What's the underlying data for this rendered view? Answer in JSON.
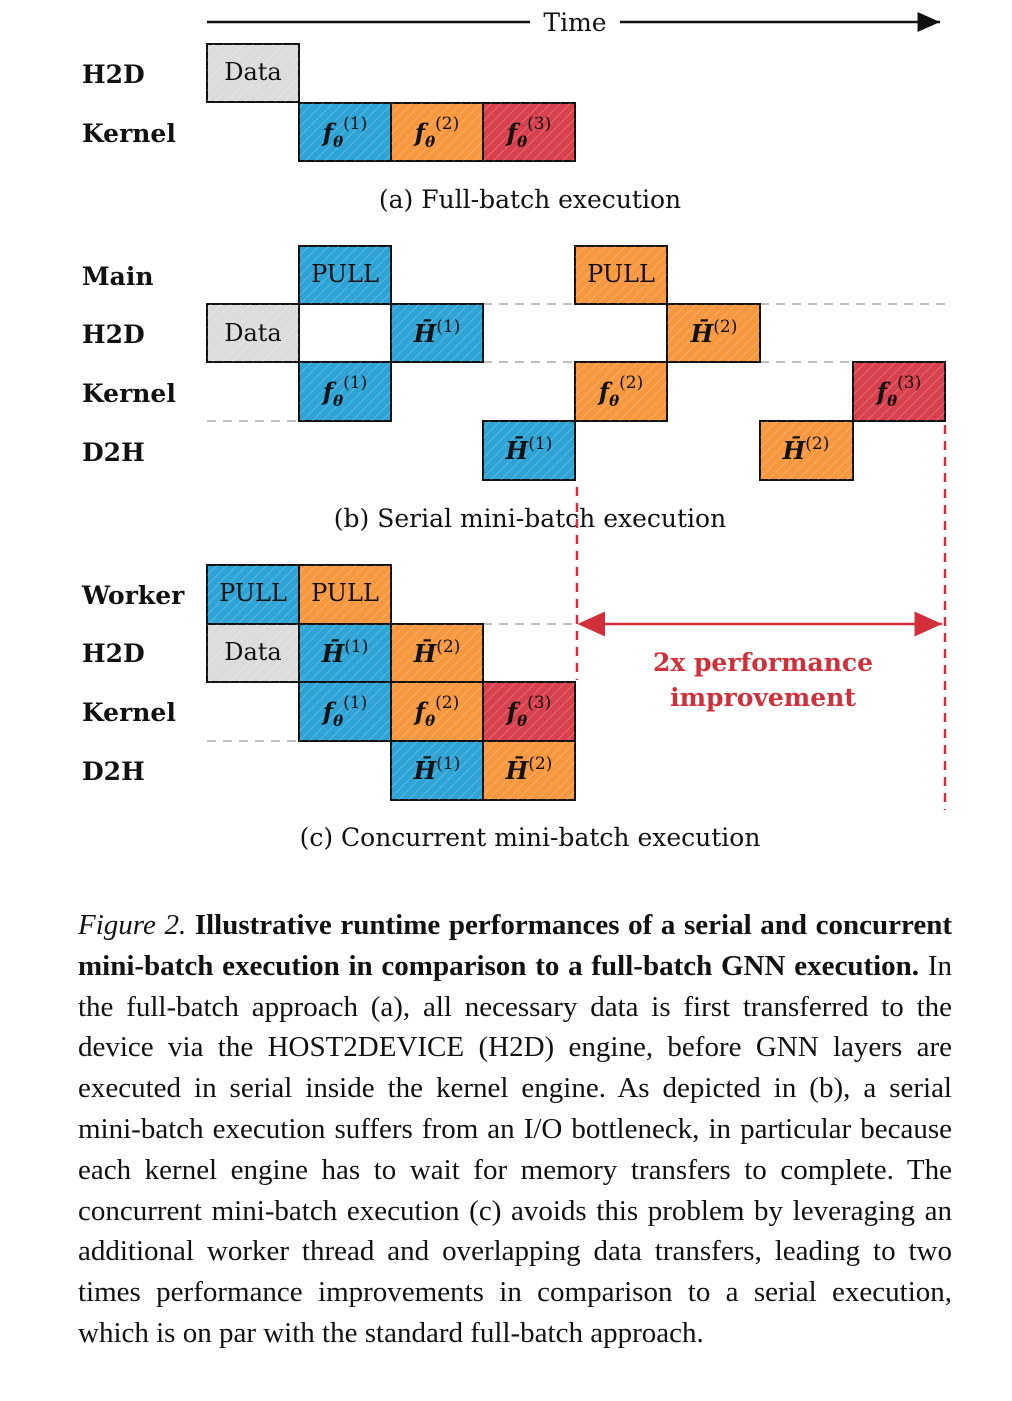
{
  "time_label": "Time",
  "colors": {
    "blue": "#2da3d6",
    "orange": "#f7973e",
    "red": "#d9404d",
    "grey": "#dcdcdc",
    "highlight": "#d1303a"
  },
  "panel_a": {
    "caption": "(a) Full-batch execution",
    "rows": [
      "H2D",
      "Kernel"
    ],
    "cells": [
      {
        "text": "Data",
        "color": "grey"
      },
      {
        "text": "f_θ^(1)",
        "color": "blue"
      },
      {
        "text": "f_θ^(2)",
        "color": "orange"
      },
      {
        "text": "f_θ^(3)",
        "color": "red"
      }
    ]
  },
  "panel_b": {
    "caption": "(b) Serial mini-batch execution",
    "rows": [
      "Main",
      "H2D",
      "Kernel",
      "D2H"
    ],
    "cells": [
      {
        "text": "PULL",
        "color": "blue"
      },
      {
        "text": "PULL",
        "color": "orange"
      },
      {
        "text": "Data",
        "color": "grey"
      },
      {
        "text": "H̄^(1)",
        "color": "blue"
      },
      {
        "text": "H̄^(2)",
        "color": "orange"
      },
      {
        "text": "f_θ^(1)",
        "color": "blue"
      },
      {
        "text": "f_θ^(2)",
        "color": "orange"
      },
      {
        "text": "f_θ^(3)",
        "color": "red"
      },
      {
        "text": "H̄^(1)",
        "color": "blue"
      },
      {
        "text": "H̄^(2)",
        "color": "orange"
      }
    ]
  },
  "panel_c": {
    "caption": "(c) Concurrent mini-batch execution",
    "rows": [
      "Worker",
      "H2D",
      "Kernel",
      "D2H"
    ],
    "cells": [
      {
        "text": "PULL",
        "color": "blue"
      },
      {
        "text": "PULL",
        "color": "orange"
      },
      {
        "text": "Data",
        "color": "grey"
      },
      {
        "text": "H̄^(1)",
        "color": "blue"
      },
      {
        "text": "H̄^(2)",
        "color": "orange"
      },
      {
        "text": "f_θ^(1)",
        "color": "blue"
      },
      {
        "text": "f_θ^(2)",
        "color": "orange"
      },
      {
        "text": "f_θ^(3)",
        "color": "red"
      },
      {
        "text": "H̄^(1)",
        "color": "blue"
      },
      {
        "text": "H̄^(2)",
        "color": "orange"
      }
    ]
  },
  "annotation": {
    "line1": "2x performance",
    "line2": "improvement"
  },
  "caption": {
    "label": "Figure 2.",
    "bold": "Illustrative runtime performances of a serial and concurrent mini-batch execution in comparison to a full-batch GNN execution.",
    "body": "In the full-batch approach (a), all necessary data is first transferred to the device via the HOST2DEVICE (H2D) engine, before GNN layers are executed in serial inside the kernel engine. As depicted in (b), a serial mini-batch execution suffers from an I/O bottleneck, in particular because each kernel engine has to wait for memory transfers to complete. The concurrent mini-batch execution (c) avoids this problem by leveraging an additional worker thread and overlapping data transfers, leading to two times performance improvements in comparison to a serial execution, which is on par with the standard full-batch approach."
  }
}
